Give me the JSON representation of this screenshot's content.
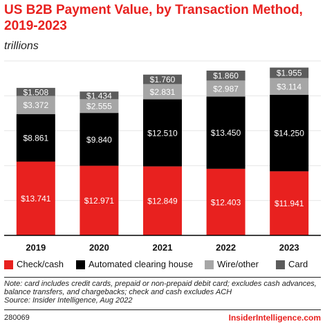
{
  "chart_data": {
    "type": "bar",
    "stacked": true,
    "title": "US B2B Payment Value, by Transaction Method, 2019-2023",
    "subtitle": "trillions",
    "categories": [
      "2019",
      "2020",
      "2021",
      "2022",
      "2023"
    ],
    "series": [
      {
        "name": "Check/cash",
        "color": "#e8211f",
        "values": [
          13.741,
          12.971,
          12.849,
          12.403,
          11.941
        ],
        "labels": [
          "$13.741",
          "$12.971",
          "$12.849",
          "$12.403",
          "$11.941"
        ]
      },
      {
        "name": "Automated clearing house",
        "color": "#000000",
        "values": [
          8.861,
          9.84,
          12.51,
          13.45,
          14.25
        ],
        "labels": [
          "$8.861",
          "$9.840",
          "$12.510",
          "$13.450",
          "$14.250"
        ]
      },
      {
        "name": "Wire/other",
        "color": "#a6a6a6",
        "values": [
          3.372,
          2.555,
          2.831,
          2.987,
          3.114
        ],
        "labels": [
          "$3.372",
          "$2.555",
          "$2.831",
          "$2.987",
          "$3.114"
        ]
      },
      {
        "name": "Card",
        "color": "#5c5c5c",
        "values": [
          1.508,
          1.434,
          1.76,
          1.86,
          1.955
        ],
        "labels": [
          "$1.508",
          "$1.434",
          "$1.760",
          "$1.860",
          "$1.955"
        ]
      }
    ],
    "ylim": [
      0,
      32.5
    ],
    "grid": true,
    "legend_position": "bottom"
  },
  "note": "Note: card includes credit cards, prepaid or non-prepaid debit card; excludes cash advances, balance transfers, and chargebacks; check and cash excludes ACH",
  "source": "Source: Insider Intelligence, Aug 2022",
  "footer": {
    "id": "280069",
    "brand": "InsiderIntelligence.com"
  }
}
